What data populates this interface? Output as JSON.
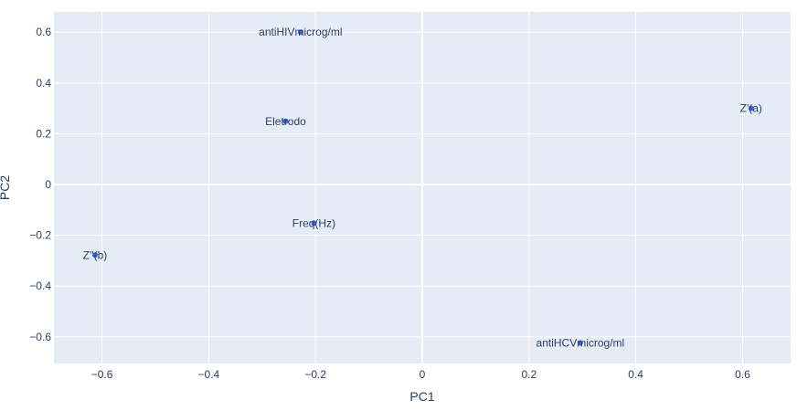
{
  "chart_data": {
    "type": "scatter",
    "title": "",
    "xlabel": "PC1",
    "ylabel": "PC2",
    "xlim": [
      -0.69,
      0.69
    ],
    "ylim": [
      -0.705,
      0.68
    ],
    "xticks": [
      -0.6,
      -0.4,
      -0.2,
      0,
      0.2,
      0.4,
      0.6
    ],
    "xtick_labels": [
      "−0.6",
      "−0.4",
      "−0.2",
      "0",
      "0.2",
      "0.4",
      "0.6"
    ],
    "yticks": [
      -0.6,
      -0.4,
      -0.2,
      0,
      0.2,
      0.4,
      0.6
    ],
    "ytick_labels": [
      "−0.6",
      "−0.4",
      "−0.2",
      "0",
      "0.2",
      "0.4",
      "0.6"
    ],
    "grid": true,
    "points": [
      {
        "label": "antiHIVmicrog/ml",
        "x": -0.228,
        "y": 0.6
      },
      {
        "label": "Eletrodo",
        "x": -0.256,
        "y": 0.249
      },
      {
        "label": "Z'(a)",
        "x": 0.616,
        "y": 0.3
      },
      {
        "label": "Freq(Hz)",
        "x": -0.203,
        "y": -0.152
      },
      {
        "label": "Z''(b)",
        "x": -0.613,
        "y": -0.278
      },
      {
        "label": "antiHCVmicrog/ml",
        "x": 0.296,
        "y": -0.624
      }
    ]
  },
  "colors": {
    "plot_bg": "#e5ecf6",
    "grid": "#ffffff",
    "marker": "#4361ee",
    "text": "#2a3f5f"
  }
}
